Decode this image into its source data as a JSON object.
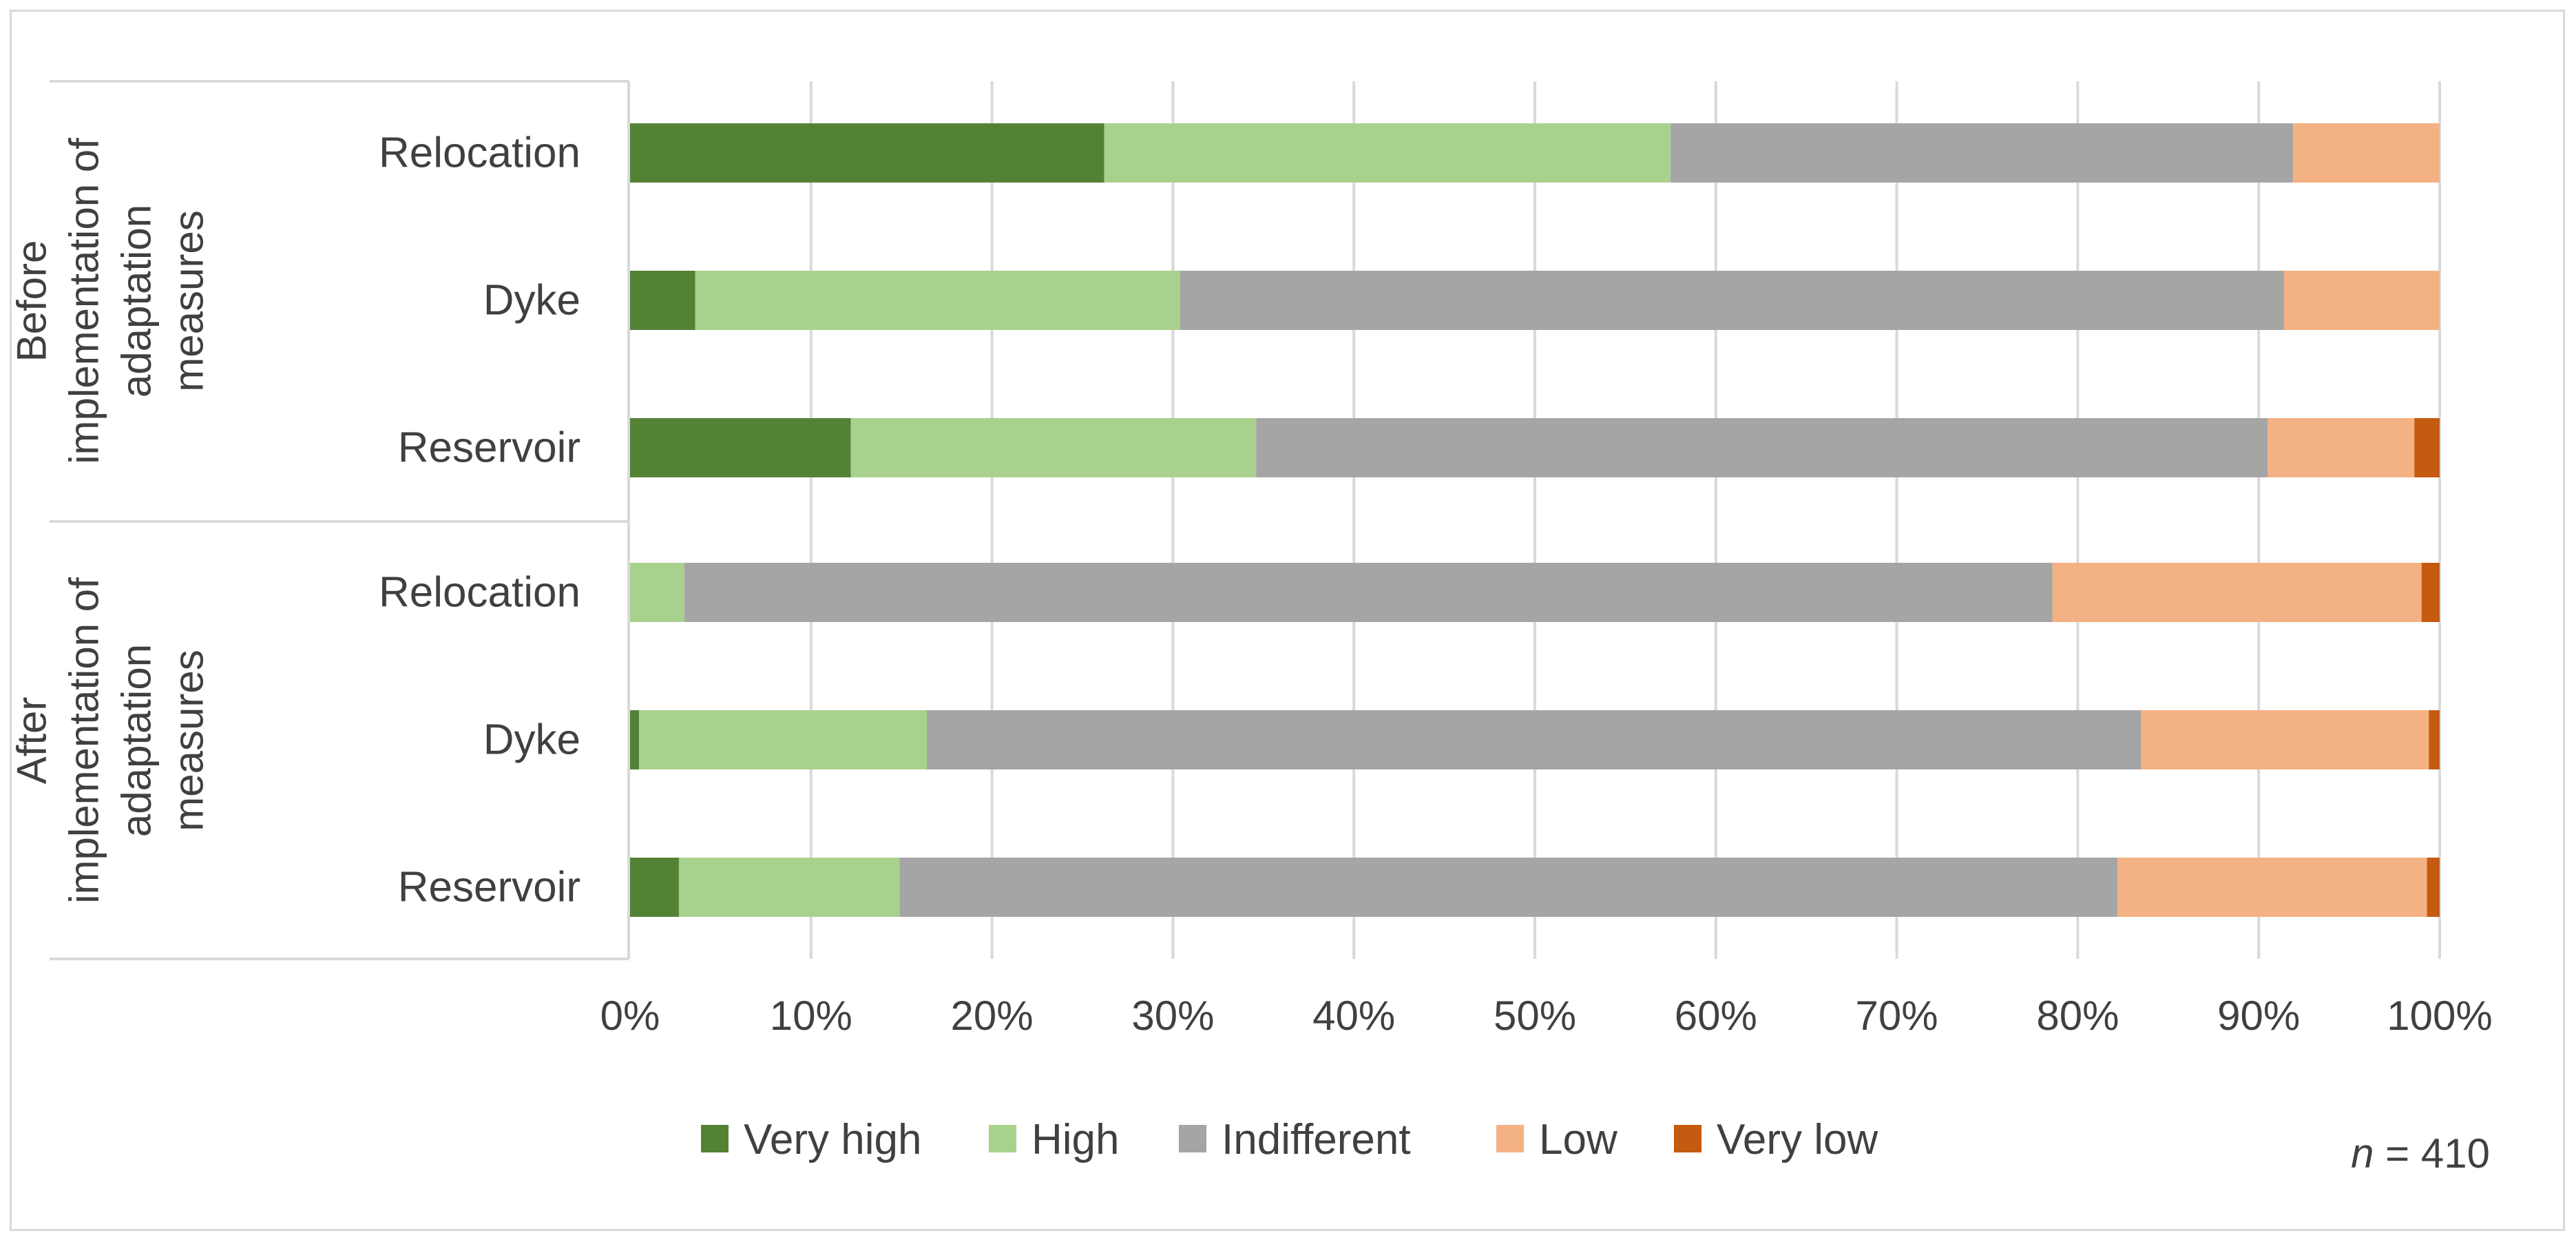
{
  "chart_data": {
    "type": "bar",
    "orientation": "horizontal",
    "stacked": "percent",
    "groups": [
      {
        "label_lines": [
          "Before",
          "implementation of",
          "adaptation",
          "measures"
        ],
        "categories": [
          "Relocation",
          "Dyke",
          "Reservoir"
        ]
      },
      {
        "label_lines": [
          "After",
          "implementation of",
          "adaptation",
          "measures"
        ],
        "categories": [
          "Relocation",
          "Dyke",
          "Reservoir"
        ]
      }
    ],
    "series": [
      {
        "name": "Very high",
        "color": "#548235",
        "values": [
          26.2,
          3.6,
          12.2,
          0.0,
          0.5,
          2.7
        ]
      },
      {
        "name": "High",
        "color": "#A9D18E",
        "values": [
          31.3,
          26.8,
          22.4,
          3.0,
          15.9,
          12.2
        ]
      },
      {
        "name": "Indifferent",
        "color": "#A5A5A5",
        "values": [
          34.4,
          61.0,
          55.9,
          75.6,
          67.1,
          67.3
        ]
      },
      {
        "name": "Low",
        "color": "#F4B183",
        "values": [
          8.1,
          8.6,
          8.1,
          20.4,
          15.9,
          17.1
        ]
      },
      {
        "name": "Very low",
        "color": "#C55A11",
        "values": [
          0.0,
          0.0,
          1.4,
          1.0,
          0.6,
          0.7
        ]
      }
    ],
    "x_ticks": [
      "0%",
      "10%",
      "20%",
      "30%",
      "40%",
      "50%",
      "60%",
      "70%",
      "80%",
      "90%",
      "100%"
    ],
    "xlim": [
      0,
      100
    ],
    "grid": "vertical",
    "legend_position": "bottom",
    "annotation": {
      "italic": "n",
      "rest": " = 410"
    }
  }
}
